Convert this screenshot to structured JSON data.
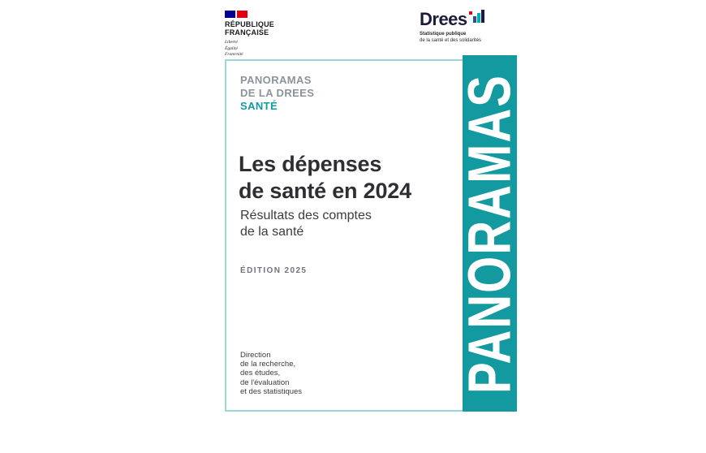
{
  "colors": {
    "teal": "#1399a0",
    "frame_border": "#9ad6d8",
    "title": "#2f2e33",
    "gray_header": "#8b939c",
    "edition": "#6e757c",
    "marianne_blue": "#000091",
    "marianne_red": "#e1000f",
    "drees_navy": "#1b1b3a",
    "drees_bar_blue": "#2d4f9e",
    "drees_bar_teal": "#00b0b2",
    "drees_bar_navy": "#1a1a4e",
    "drees_dot_red": "#e1001a"
  },
  "marianne": {
    "name_line1": "RÉPUBLIQUE",
    "name_line2": "FRANÇAISE",
    "motto_line1": "Liberté",
    "motto_line2": "Égalité",
    "motto_line3": "Fraternité"
  },
  "drees": {
    "name": "Drees",
    "tagline_line1": "Statistique publique",
    "tagline_line2": "de la santé et des solidarités"
  },
  "collection": {
    "line1": "PANORAMAS",
    "line2": "DE LA DREES",
    "line3": "SANTÉ"
  },
  "cover": {
    "title_line1": "Les dépenses",
    "title_line2": "de santé en 2024",
    "subtitle_line1": "Résultats des comptes",
    "subtitle_line2": "de la santé",
    "edition": "ÉDITION 2025",
    "publisher_lines": [
      "Direction",
      "de la recherche,",
      "des études,",
      "de l'évaluation",
      "et des statistiques"
    ]
  },
  "banner": {
    "text": "PANORAMAS"
  }
}
